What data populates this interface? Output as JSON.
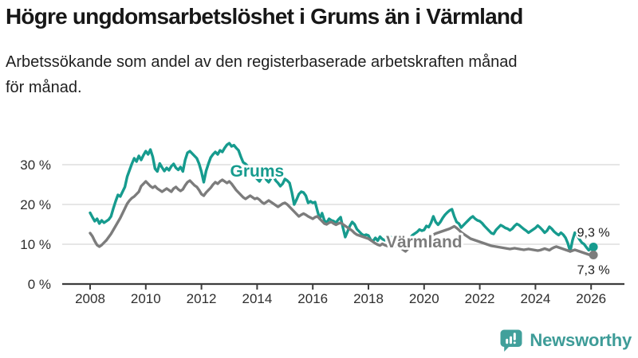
{
  "header": {
    "title": "Högre ungdomsarbetslöshet i Grums än i Värmland",
    "subtitle_line1": "Arbetssökande som andel av den registerbaserade arbetskraften månad",
    "subtitle_line2": "för månad."
  },
  "footer": {
    "brand": "Newsworthy"
  },
  "colors": {
    "grums": "#169b8e",
    "varmland": "#7c7c7c",
    "brand_teal": "#3e9c98",
    "grid": "#d8d8d8",
    "axis": "#3d3d3d",
    "tick_text": "#2e2e2e",
    "end_label_text": "#1a1a1a"
  },
  "chart_data": {
    "type": "line",
    "title": "Högre ungdomsarbetslöshet i Grums än i Värmland",
    "subtitle": "Arbetssökande som andel av den registerbaserade arbetskraften månad för månad.",
    "xlabel": "",
    "ylabel": "",
    "grid": "horizontal",
    "legend_position": "inline-labels",
    "xlim": [
      2007.7,
      2026.7
    ],
    "ylim": [
      0,
      37
    ],
    "x_ticks": [
      2008,
      2010,
      2012,
      2014,
      2016,
      2018,
      2020,
      2022,
      2024,
      2026
    ],
    "x_tick_labels": [
      "2008",
      "2010",
      "2012",
      "2014",
      "2016",
      "2018",
      "2020",
      "2022",
      "2024",
      "2026"
    ],
    "y_ticks": [
      {
        "value": 0,
        "label": "0 %"
      },
      {
        "value": 10,
        "label": "10 %"
      },
      {
        "value": 20,
        "label": "20 %"
      },
      {
        "value": 30,
        "label": "30 %"
      }
    ],
    "start_year": 2008,
    "points_per_year": 12,
    "series": [
      {
        "name": "Grums",
        "color": "#169b8e",
        "end_label": "9,3 %",
        "end_value": 9.3,
        "label_pos": {
          "year": 2014.0,
          "value": 28.4
        },
        "end_label_offset": -13,
        "values": [
          17.9,
          16.8,
          15.8,
          16.4,
          15.2,
          16.0,
          15.4,
          15.8,
          16.2,
          17.0,
          19.0,
          20.8,
          22.4,
          22.0,
          23.2,
          24.4,
          27.0,
          28.6,
          30.2,
          31.6,
          30.8,
          32.2,
          31.2,
          32.4,
          33.4,
          32.6,
          33.8,
          32.0,
          29.0,
          28.3,
          30.3,
          29.3,
          28.4,
          29.2,
          28.6,
          29.6,
          30.2,
          29.2,
          28.7,
          29.4,
          28.3,
          31.2,
          33.0,
          33.4,
          32.8,
          32.2,
          31.6,
          30.2,
          28.2,
          25.6,
          28.4,
          30.2,
          31.8,
          32.6,
          33.2,
          32.6,
          33.6,
          33.2,
          34.2,
          35.0,
          35.4,
          34.6,
          34.9,
          34.2,
          33.6,
          32.0,
          30.6,
          30.2,
          29.6,
          28.8,
          28.0,
          27.2,
          26.4,
          25.8,
          26.8,
          27.4,
          26.2,
          25.6,
          26.6,
          27.2,
          26.0,
          25.4,
          24.6,
          25.2,
          26.4,
          26.0,
          25.4,
          23.0,
          20.0,
          21.2,
          22.6,
          23.2,
          23.0,
          22.2,
          20.4,
          20.8,
          20.4,
          20.6,
          18.4,
          16.4,
          17.8,
          16.0,
          15.4,
          16.4,
          16.0,
          15.8,
          15.4,
          16.2,
          16.8,
          14.2,
          11.8,
          13.2,
          14.6,
          15.6,
          15.0,
          13.8,
          13.2,
          12.6,
          12.2,
          12.4,
          12.2,
          11.1,
          10.8,
          11.6,
          10.9,
          11.9,
          11.3,
          11.0,
          11.6,
          12.1,
          11.6,
          11.9,
          11.6,
          11.2,
          10.9,
          10.3,
          10.7,
          11.1,
          11.6,
          12.3,
          12.7,
          13.1,
          13.7,
          13.4,
          13.6,
          14.6,
          14.3,
          15.4,
          17.0,
          15.6,
          14.9,
          15.6,
          16.6,
          17.4,
          18.0,
          18.5,
          18.8,
          17.0,
          15.6,
          15.2,
          14.2,
          14.8,
          15.4,
          16.0,
          16.6,
          17.0,
          16.4,
          16.0,
          15.8,
          15.3,
          14.6,
          14.0,
          13.4,
          12.8,
          12.6,
          13.6,
          14.2,
          14.8,
          14.5,
          14.1,
          13.9,
          13.5,
          13.9,
          14.6,
          15.1,
          14.8,
          14.3,
          13.8,
          13.4,
          12.9,
          13.3,
          13.7,
          14.1,
          14.7,
          14.2,
          13.6,
          12.9,
          13.4,
          14.4,
          13.9,
          13.2,
          12.7,
          12.3,
          12.9,
          12.4,
          11.6,
          10.2,
          8.2,
          11.0,
          12.9,
          12.2,
          11.2,
          10.4,
          10.0,
          9.2,
          8.5,
          9.0,
          9.3
        ]
      },
      {
        "name": "Värmland",
        "color": "#7c7c7c",
        "end_label": "7,3 %",
        "end_value": 7.3,
        "label_pos": {
          "year": 2020.0,
          "value": 10.6
        },
        "end_label_offset": 24,
        "values": [
          12.8,
          12.0,
          10.8,
          9.8,
          9.4,
          9.8,
          10.4,
          11.0,
          11.8,
          12.6,
          13.6,
          14.6,
          15.6,
          16.6,
          17.8,
          19.0,
          20.2,
          21.0,
          21.6,
          22.0,
          22.6,
          23.2,
          24.6,
          25.2,
          25.8,
          25.2,
          24.6,
          24.2,
          24.6,
          24.0,
          23.6,
          23.2,
          23.6,
          24.0,
          23.6,
          23.2,
          24.0,
          24.4,
          23.8,
          23.4,
          23.8,
          24.8,
          25.6,
          26.0,
          25.4,
          24.8,
          24.4,
          23.6,
          22.6,
          22.2,
          23.0,
          23.6,
          24.2,
          25.0,
          25.6,
          25.2,
          25.8,
          26.2,
          25.8,
          25.4,
          25.8,
          25.2,
          24.4,
          23.6,
          23.0,
          22.4,
          21.8,
          21.4,
          21.8,
          22.2,
          21.8,
          21.4,
          21.6,
          21.2,
          20.6,
          20.2,
          20.6,
          21.0,
          20.6,
          20.2,
          19.8,
          19.4,
          19.8,
          20.2,
          20.4,
          20.0,
          19.4,
          18.8,
          18.2,
          17.6,
          17.0,
          17.4,
          17.7,
          17.4,
          17.0,
          16.7,
          16.4,
          16.8,
          17.0,
          16.4,
          15.8,
          15.2,
          15.0,
          15.4,
          15.6,
          15.2,
          14.9,
          15.2,
          15.4,
          15.0,
          14.6,
          14.2,
          13.8,
          13.4,
          12.8,
          12.4,
          12.2,
          12.0,
          11.8,
          11.6,
          11.4,
          11.0,
          10.6,
          10.2,
          9.9,
          9.7,
          10.1,
          9.8,
          9.6,
          9.4,
          9.2,
          9.4,
          9.6,
          9.3,
          9.0,
          8.6,
          8.2,
          8.8,
          9.2,
          9.5,
          9.8,
          10.1,
          10.4,
          10.6,
          10.9,
          11.2,
          11.6,
          12.0,
          12.4,
          12.7,
          12.9,
          13.1,
          13.3,
          13.5,
          13.7,
          13.9,
          14.2,
          14.5,
          14.1,
          13.6,
          13.0,
          12.6,
          12.2,
          11.8,
          11.4,
          11.2,
          11.0,
          10.8,
          10.6,
          10.4,
          10.2,
          10.0,
          9.8,
          9.6,
          9.5,
          9.4,
          9.3,
          9.2,
          9.1,
          9.0,
          8.9,
          8.8,
          8.9,
          9.0,
          8.9,
          8.8,
          8.7,
          8.6,
          8.7,
          8.8,
          8.7,
          8.6,
          8.5,
          8.4,
          8.5,
          8.7,
          8.9,
          8.7,
          8.5,
          8.9,
          9.2,
          9.4,
          9.2,
          9.0,
          8.8,
          8.6,
          8.4,
          8.2,
          8.4,
          8.6,
          8.4,
          8.2,
          8.0,
          7.8,
          7.6,
          7.4,
          7.2,
          7.3
        ]
      }
    ]
  }
}
